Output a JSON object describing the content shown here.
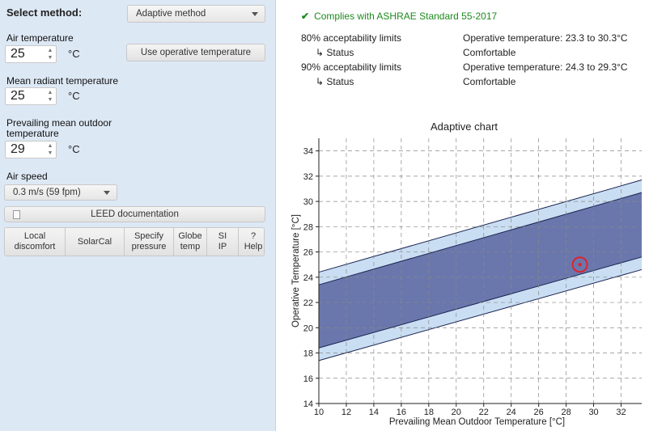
{
  "left": {
    "method_label": "Select method:",
    "method_value": "Adaptive method",
    "air_temp_label": "Air temperature",
    "air_temp_value": "25",
    "air_temp_unit": "°C",
    "operative_button": "Use operative temperature",
    "mrt_label": "Mean radiant temperature",
    "mrt_value": "25",
    "mrt_unit": "°C",
    "outdoor_label_1": "Prevailing mean outdoor",
    "outdoor_label_2": "temperature",
    "outdoor_value": "29",
    "outdoor_unit": "°C",
    "air_speed_label": "Air speed",
    "air_speed_value": "0.3 m/s (59 fpm)",
    "leed_button": "LEED documentation",
    "bottom_buttons": [
      "Local\ndiscomfort",
      "SolarCal",
      "Specify\npressure",
      "Globe\ntemp",
      "SI\nIP",
      "?\nHelp"
    ]
  },
  "results": {
    "compliance": "Complies with ASHRAE Standard 55-2017",
    "compliance_color": "#1e8a1e",
    "rows": [
      {
        "label": "80% acceptability limits",
        "value": "Operative temperature: 23.3 to 30.3°C"
      },
      {
        "label": "↳  Status",
        "value": "Comfortable"
      },
      {
        "label": "90% acceptability limits",
        "value": "Operative temperature: 24.3 to 29.3°C"
      },
      {
        "label": "↳  Status",
        "value": "Comfortable"
      }
    ]
  },
  "chart_data": {
    "type": "area",
    "title": "Adaptive chart",
    "xlabel": "Prevailing Mean Outdoor Temperature [°C]",
    "ylabel": "Operative Temperature [°C]",
    "xlim": [
      10,
      33.5
    ],
    "ylim": [
      14,
      35
    ],
    "x_ticks": [
      10,
      12,
      14,
      16,
      18,
      20,
      22,
      24,
      26,
      28,
      30,
      32
    ],
    "y_ticks": [
      14,
      16,
      18,
      20,
      22,
      24,
      26,
      28,
      30,
      32,
      34
    ],
    "grid": true,
    "series": [
      {
        "name": "80% acceptability",
        "color": "#c9def2",
        "x": [
          10,
          33.5
        ],
        "lower": [
          17.4,
          24.6
        ],
        "upper": [
          24.4,
          31.7
        ]
      },
      {
        "name": "90% acceptability",
        "color": "#6a77ad",
        "x": [
          10,
          33.5
        ],
        "lower": [
          18.4,
          25.6
        ],
        "upper": [
          23.4,
          30.7
        ]
      }
    ],
    "point": {
      "x": 29,
      "y": 25
    }
  }
}
